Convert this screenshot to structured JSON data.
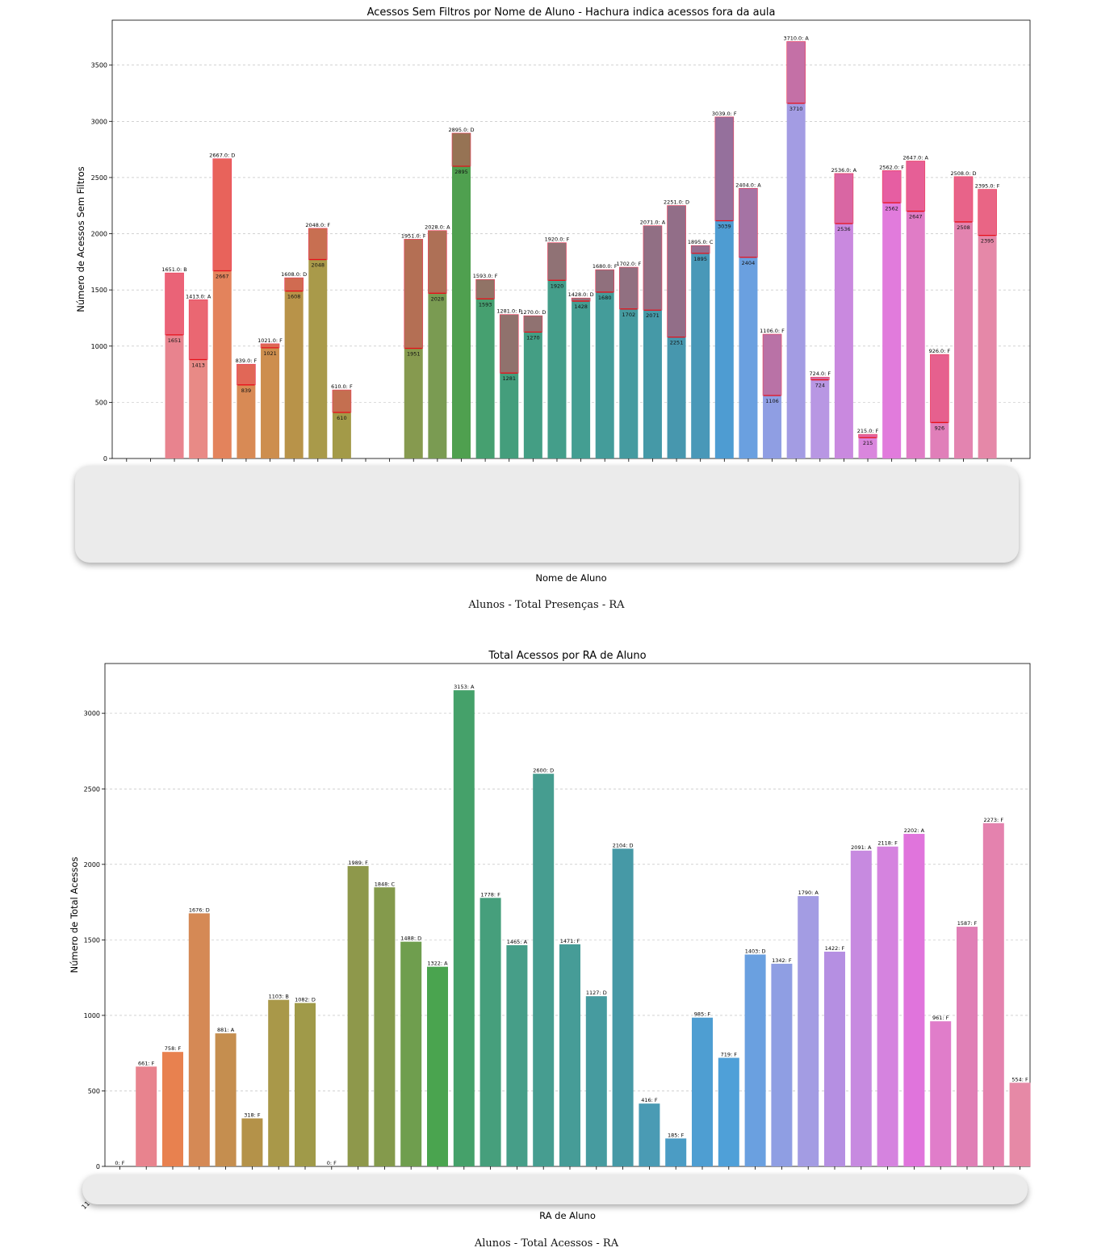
{
  "captions": {
    "first": "Alunos - Total Presenças - RA",
    "second": "Alunos - Total Acessos - RA"
  },
  "chart_data": [
    {
      "type": "bar",
      "title": "Acessos Sem Filtros por Nome de Aluno - Hachura indica acessos fora da aula",
      "xlabel": "Nome de Aluno",
      "ylabel": "Número de Acessos Sem Filtros",
      "ylim": [
        0,
        3900
      ],
      "yticks": [
        0,
        500,
        1000,
        1500,
        2000,
        2500,
        3000,
        3500
      ],
      "grid": true,
      "x_tick_labels_visible": false,
      "categories_count": 38,
      "values": [
        null,
        null,
        1651,
        1413,
        2667,
        839,
        1021,
        1608,
        2048,
        610,
        null,
        null,
        1951,
        2028,
        2895,
        1593,
        1281,
        1270,
        1920,
        1428,
        1680,
        1702,
        2071,
        2251,
        1895,
        3039,
        2404,
        1106,
        3710,
        724,
        2536,
        215,
        2562,
        2647,
        926,
        2508,
        2395,
        null
      ],
      "grades": [
        null,
        null,
        "B",
        "A",
        "D",
        "F",
        "F",
        "D",
        "F",
        "F",
        null,
        null,
        "F",
        "A",
        "D",
        "F",
        "F",
        "D",
        "F",
        "D",
        "F",
        "F",
        "A",
        "D",
        "C",
        "F",
        "A",
        "F",
        "A",
        "F",
        "A",
        "F",
        "F",
        "A",
        "F",
        "D",
        "F",
        null
      ],
      "hatched_start": [
        null,
        null,
        1100,
        880,
        1670,
        655,
        985,
        1490,
        1770,
        410,
        null,
        null,
        980,
        1470,
        2600,
        1420,
        760,
        1125,
        1585,
        1400,
        1480,
        1330,
        1320,
        1080,
        1825,
        2115,
        1790,
        560,
        3160,
        700,
        2090,
        185,
        2275,
        2200,
        320,
        2105,
        1985,
        null
      ],
      "top_labels": [
        null,
        null,
        "1651.0: B",
        "1413.0: A",
        "2667.0: D",
        "839.0: F",
        "1021.0: F",
        "1608.0: D",
        "2048.0: F",
        "610.0: F",
        null,
        null,
        "1951.0: F",
        "2028.0: A",
        "2895.0: D",
        "1593.0: F",
        "1281.0: F",
        "1270.0: D",
        "1920.0: F",
        "1428.0: D",
        "1680.0: F",
        "1702.0: F",
        "2071.0: A",
        "2251.0: D",
        "1895.0: C",
        "3039.0: F",
        "2404.0: A",
        "1106.0: F",
        "3710.0: A",
        "724.0: F",
        "2536.0: A",
        "215.0: F",
        "2562.0: F",
        "2647.0: A",
        "926.0: F",
        "2508.0: D",
        "2395.0: F",
        null
      ],
      "inner_labels": [
        null,
        null,
        "1651",
        "1413",
        "2667",
        "839",
        "1021",
        "1608",
        "2048",
        "610",
        null,
        null,
        "1951",
        "2028",
        "2895",
        "1593",
        "1281",
        "1270",
        "1920",
        "1428",
        "1680",
        "1702",
        "2071",
        "2251",
        "1895",
        "3039",
        "2404",
        "1106",
        "3710",
        "724",
        "2536",
        "215",
        "2562",
        "2647",
        "926",
        "2508",
        "2395",
        null
      ],
      "colors": [
        "#e8838e",
        "#e8838e",
        "#e8838e",
        "#e88a86",
        "#e3835c",
        "#d88a55",
        "#cd8e4e",
        "#b89349",
        "#a99a4a",
        "#a39a48",
        "#9a9a48",
        "#909a4a",
        "#869a4f",
        "#7a9b52",
        "#4fa04f",
        "#46a070",
        "#449e7c",
        "#449e84",
        "#449e8a",
        "#449e92",
        "#449c9a",
        "#459ba0",
        "#4599a7",
        "#4797ae",
        "#4998b8",
        "#4e9cd2",
        "#6aa0e0",
        "#8f9ee3",
        "#a39ce3",
        "#b897e3",
        "#c989df",
        "#d986dd",
        "#e17bdc",
        "#e07cc6",
        "#e07fb9",
        "#e384b0",
        "#e588a8",
        "#e78ba0"
      ],
      "highlight_color": "#ee3b5a"
    },
    {
      "type": "bar",
      "title": "Total Acessos por RA de Aluno",
      "xlabel": "RA de Aluno",
      "ylabel": "Número de Total Acessos",
      "ylim": [
        0,
        3330
      ],
      "yticks": [
        0,
        500,
        1000,
        1500,
        2000,
        2500,
        3000
      ],
      "grid": true,
      "x_tick_labels_visible": false,
      "partial_tick_label": "11",
      "values": [
        0,
        661,
        758,
        1676,
        881,
        318,
        1103,
        1082,
        0,
        1989,
        1848,
        1488,
        1322,
        3153,
        1778,
        1465,
        2600,
        1471,
        1127,
        2104,
        416,
        185,
        985,
        719,
        1403,
        1342,
        1790,
        1422,
        2091,
        2118,
        2202,
        961,
        1587,
        2273,
        554
      ],
      "labels": [
        "0: F",
        "661: F",
        "758: F",
        "1676: D",
        "881: A",
        "318: F",
        "1103: B",
        "1082: D",
        "0: F",
        "1989: F",
        "1848: C",
        "1488: D",
        "1322: A",
        "3153: A",
        "1778: F",
        "1465: A",
        "2600: D",
        "1471: F",
        "1127: D",
        "2104: D",
        "416: F",
        "185: F",
        "985: F",
        "719: F",
        "1403: D",
        "1342: F",
        "1790: A",
        "1422: F",
        "2091: A",
        "2118: F",
        "2202: A",
        "961: F",
        "1587: F",
        "2273: F",
        "554: F"
      ],
      "colors": [
        "#e8838e",
        "#e8838e",
        "#e8814f",
        "#d58955",
        "#c58e4f",
        "#b49249",
        "#a99849",
        "#a09a49",
        "#96984a",
        "#8e984b",
        "#849a4c",
        "#6f9e4e",
        "#4aa44f",
        "#45a16a",
        "#469f7c",
        "#469e88",
        "#469d90",
        "#469c97",
        "#469b9f",
        "#4699a6",
        "#4a9bb4",
        "#4b9cc4",
        "#4e9ed2",
        "#4fa0d8",
        "#6aa0e0",
        "#8f9ee3",
        "#a39ce3",
        "#b58fe2",
        "#c78ae0",
        "#d583df",
        "#e074dc",
        "#e07dca",
        "#e07fb6",
        "#e482ae",
        "#e689a6"
      ]
    }
  ]
}
